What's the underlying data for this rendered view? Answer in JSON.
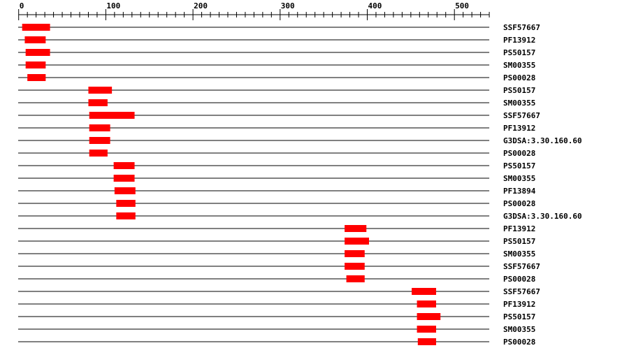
{
  "axis": {
    "min": 0,
    "max": 540,
    "major_step": 100,
    "minor_step": 10,
    "tick_labels": [
      "0",
      "100",
      "200",
      "300",
      "400",
      "500"
    ]
  },
  "colors": {
    "domain": "#ff0000",
    "line": "#000000"
  },
  "tracks": [
    {
      "label": "SSF57667",
      "start": 4,
      "end": 36
    },
    {
      "label": "PF13912",
      "start": 7,
      "end": 31
    },
    {
      "label": "PS50157",
      "start": 8,
      "end": 36
    },
    {
      "label": "SM00355",
      "start": 8,
      "end": 31
    },
    {
      "label": "PS00028",
      "start": 10,
      "end": 31
    },
    {
      "label": "PS50157",
      "start": 80,
      "end": 107
    },
    {
      "label": "SM00355",
      "start": 80,
      "end": 102
    },
    {
      "label": "SSF57667",
      "start": 81,
      "end": 133
    },
    {
      "label": "PF13912",
      "start": 81,
      "end": 105
    },
    {
      "label": "G3DSA:3.30.160.60",
      "start": 81,
      "end": 105
    },
    {
      "label": "PS00028",
      "start": 81,
      "end": 102
    },
    {
      "label": "PS50157",
      "start": 109,
      "end": 133
    },
    {
      "label": "SM00355",
      "start": 109,
      "end": 133
    },
    {
      "label": "PF13894",
      "start": 110,
      "end": 134
    },
    {
      "label": "PS00028",
      "start": 112,
      "end": 134
    },
    {
      "label": "G3DSA:3.30.160.60",
      "start": 112,
      "end": 134
    },
    {
      "label": "PF13912",
      "start": 374,
      "end": 399
    },
    {
      "label": "PS50157",
      "start": 374,
      "end": 402
    },
    {
      "label": "SM00355",
      "start": 374,
      "end": 397
    },
    {
      "label": "SSF57667",
      "start": 374,
      "end": 397
    },
    {
      "label": "PS00028",
      "start": 376,
      "end": 397
    },
    {
      "label": "SSF57667",
      "start": 451,
      "end": 479
    },
    {
      "label": "PF13912",
      "start": 457,
      "end": 479
    },
    {
      "label": "PS50157",
      "start": 457,
      "end": 484
    },
    {
      "label": "SM00355",
      "start": 457,
      "end": 479
    },
    {
      "label": "PS00028",
      "start": 458,
      "end": 479
    }
  ]
}
